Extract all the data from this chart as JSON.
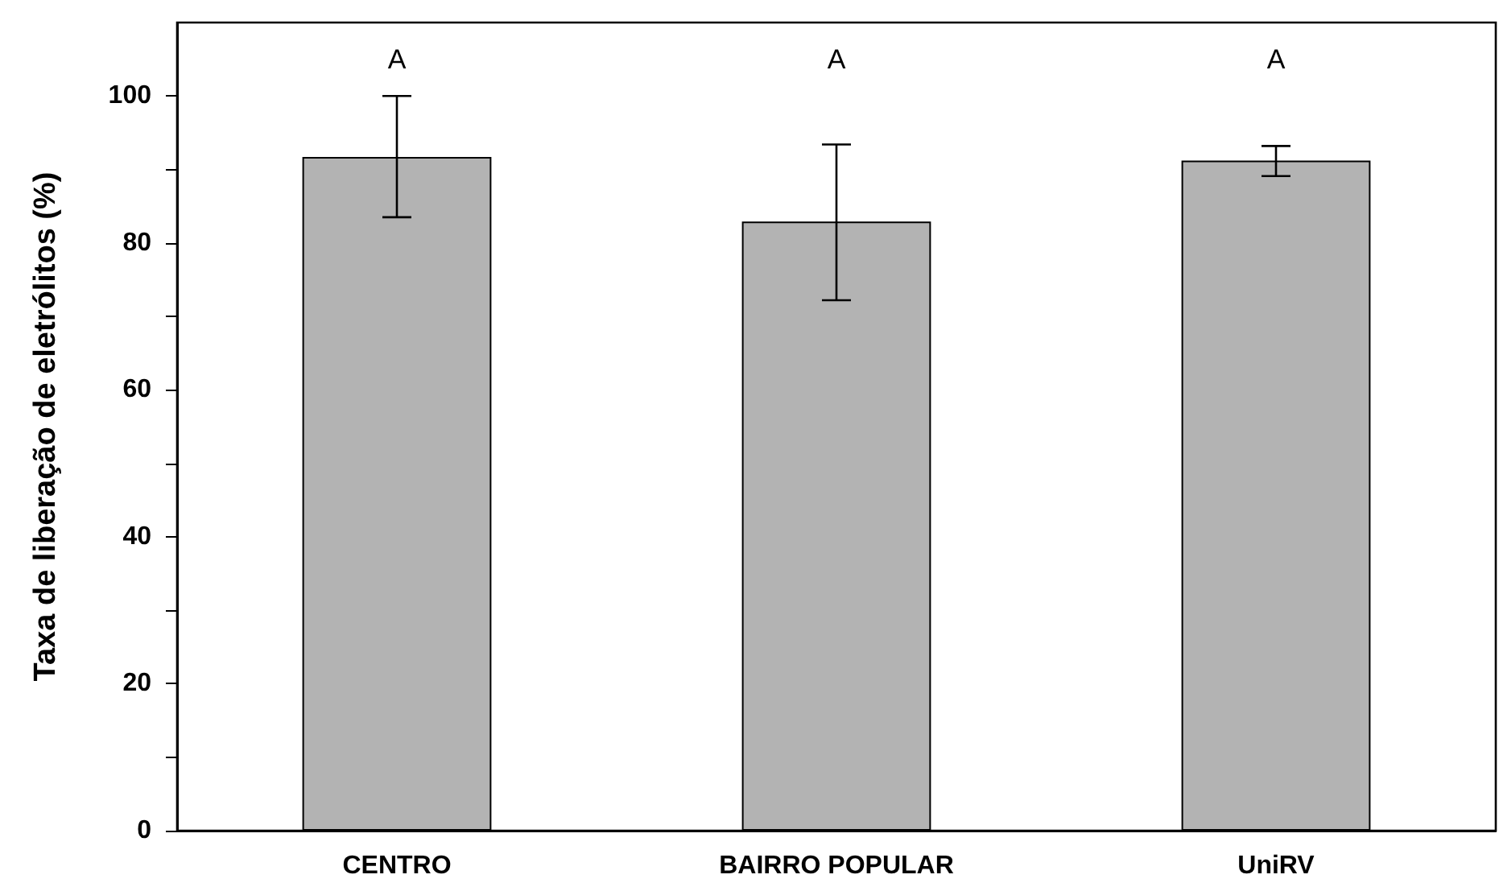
{
  "chart_data": {
    "type": "bar",
    "ylabel": "Taxa de liberação de eletrólitos (%)",
    "categories": [
      "CENTRO",
      "BAIRRO POPULAR",
      "UniRV"
    ],
    "values": [
      91.7,
      82.9,
      91.2
    ],
    "errors": [
      [
        83.5,
        100
      ],
      [
        72.2,
        93.4
      ],
      [
        89.1,
        93.2
      ]
    ],
    "color": "#b3b3b3",
    "ylim": [
      0,
      110
    ],
    "yticks": [
      0,
      {
        "value": 10,
        "label": null
      },
      20,
      {
        "value": 30,
        "label": null
      },
      40,
      {
        "value": 50,
        "label": null
      },
      60,
      {
        "value": 70,
        "label": null
      },
      80,
      {
        "value": 90,
        "label": null
      },
      100
    ],
    "annotations": [
      "A",
      "A",
      "A"
    ],
    "grid": false
  }
}
